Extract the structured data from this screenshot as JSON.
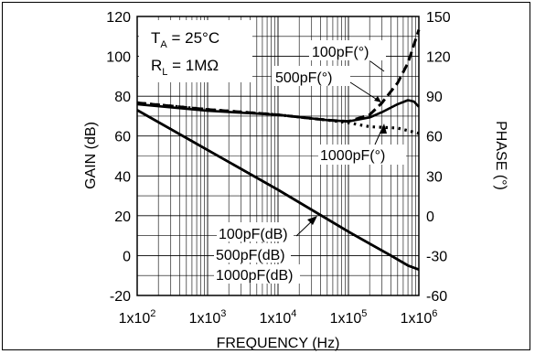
{
  "chart_data": {
    "type": "line",
    "xlabel": "FREQUENCY (Hz)",
    "ylabel": "GAIN (dB)",
    "y2label": "PHASE (°)",
    "x_scale": "log",
    "xlim": [
      100,
      1000000
    ],
    "ylim": [
      -20,
      120
    ],
    "y2lim": [
      -60,
      150
    ],
    "grid": true,
    "x_ticks": [
      {
        "mant": "1x10",
        "exp": "2"
      },
      {
        "mant": "1x10",
        "exp": "3"
      },
      {
        "mant": "1x10",
        "exp": "4"
      },
      {
        "mant": "1x10",
        "exp": "5"
      },
      {
        "mant": "1x10",
        "exp": "6"
      }
    ],
    "y_ticks": [
      "-20",
      "0",
      "20",
      "40",
      "60",
      "80",
      "100",
      "120"
    ],
    "y2_ticks": [
      "-60",
      "-30",
      "0",
      "30",
      "60",
      "90",
      "120",
      "150"
    ],
    "conditions": {
      "ta_sym": "T",
      "ta_sub": "A",
      "ta_val": " = 25°C",
      "rl_sym": "R",
      "rl_sub": "L",
      "rl_val": " = 1MΩ"
    },
    "series": [
      {
        "name": "100pF(dB)",
        "axis": "gain",
        "style": "solid",
        "x": [
          100,
          1000,
          10000,
          100000,
          200000,
          400000,
          700000,
          1000000
        ],
        "y": [
          73,
          53,
          33,
          12,
          6,
          0,
          -5,
          -7
        ]
      },
      {
        "name": "500pF(dB)",
        "axis": "gain",
        "style": "solid",
        "x": [
          100,
          1000,
          10000,
          100000,
          200000,
          400000,
          700000,
          1000000
        ],
        "y": [
          73,
          53,
          33,
          12,
          6,
          0,
          -5,
          -7
        ]
      },
      {
        "name": "1000pF(dB)",
        "axis": "gain",
        "style": "solid",
        "x": [
          100,
          1000,
          10000,
          100000,
          200000,
          400000,
          700000,
          1000000
        ],
        "y": [
          73,
          53,
          33,
          12,
          6,
          0,
          -5,
          -7
        ]
      },
      {
        "name": "100pF(°)",
        "axis": "phase",
        "style": "dashed",
        "x": [
          100,
          1000,
          10000,
          50000,
          100000,
          200000,
          300000,
          500000,
          700000,
          1000000
        ],
        "y": [
          85,
          80,
          76,
          72,
          71,
          76,
          85,
          100,
          115,
          140
        ]
      },
      {
        "name": "500pF(°)",
        "axis": "phase",
        "style": "solid",
        "x": [
          100,
          1000,
          10000,
          50000,
          100000,
          200000,
          300000,
          500000,
          700000,
          850000,
          1000000
        ],
        "y": [
          84,
          79,
          76,
          72,
          71,
          74,
          78,
          84,
          87,
          86,
          82
        ]
      },
      {
        "name": "1000pF(°)",
        "axis": "phase",
        "style": "dotted",
        "x": [
          100,
          1000,
          10000,
          50000,
          100000,
          200000,
          500000,
          1000000
        ],
        "y": [
          85,
          80,
          76,
          72,
          70,
          67,
          66,
          62
        ]
      }
    ],
    "annotations": [
      {
        "text": "100pF(°)",
        "for": "100pF(°)"
      },
      {
        "text": "500pF(°)",
        "for": "500pF(°)"
      },
      {
        "text": "1000pF(°)",
        "for": "1000pF(°)"
      },
      {
        "text": "100pF(dB)",
        "for": "100pF(dB)"
      },
      {
        "text": "500pF(dB)",
        "for": "500pF(dB)"
      },
      {
        "text": "1000pF(dB)",
        "for": "1000pF(dB)"
      }
    ]
  }
}
